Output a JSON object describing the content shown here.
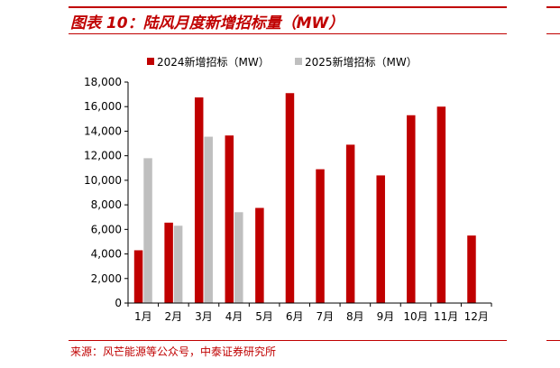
{
  "header": {
    "title": "图表 10：陆风月度新增招标量（MW）"
  },
  "footer": {
    "source": "来源：风芒能源等公众号，中泰证券研究所"
  },
  "colors": {
    "accent": "#c00000",
    "series_2024": "#c00000",
    "series_2025": "#bfbfbf"
  },
  "chart_data": {
    "type": "bar",
    "categories": [
      "1月",
      "2月",
      "3月",
      "4月",
      "5月",
      "6月",
      "7月",
      "8月",
      "9月",
      "10月",
      "11月",
      "12月"
    ],
    "series": [
      {
        "name": "2024新增招标（MW）",
        "values": [
          4300,
          6550,
          16750,
          13650,
          7750,
          17100,
          10900,
          12900,
          10400,
          15300,
          16000,
          5500
        ]
      },
      {
        "name": "2025新增招标（MW）",
        "values": [
          11800,
          6300,
          13550,
          7400,
          null,
          null,
          null,
          null,
          null,
          null,
          null,
          null
        ]
      }
    ],
    "title": "",
    "xlabel": "",
    "ylabel": "",
    "ylim": [
      0,
      18000
    ],
    "yticks": [
      0,
      2000,
      4000,
      6000,
      8000,
      10000,
      12000,
      14000,
      16000,
      18000
    ],
    "ytick_labels": [
      "0",
      "2,000",
      "4,000",
      "6,000",
      "8,000",
      "10,000",
      "12,000",
      "14,000",
      "16,000",
      "18,000"
    ],
    "grid": false,
    "legend_position": "top"
  }
}
